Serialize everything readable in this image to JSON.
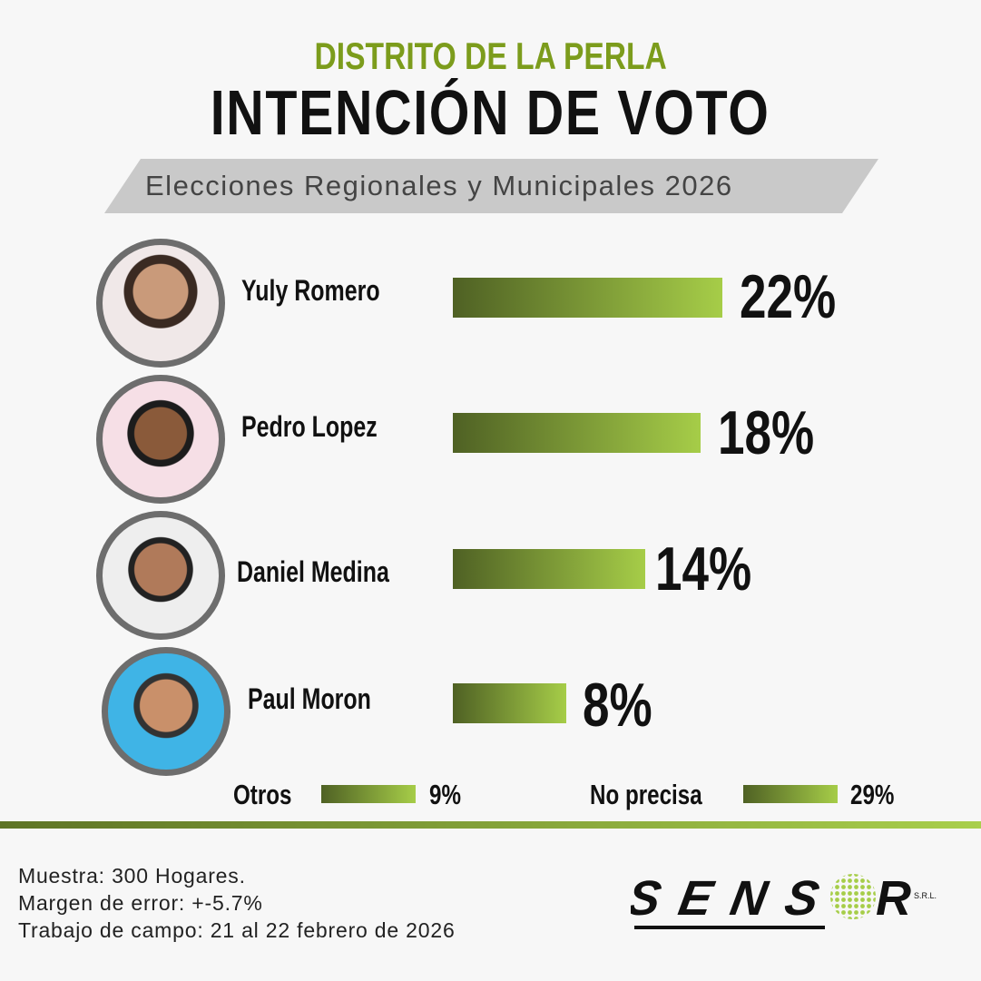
{
  "header": {
    "subtitle": "DISTRITO DE LA PERLA",
    "title": "INTENCIÓN DE VOTO",
    "banner": "Elecciones Regionales y Municipales 2026"
  },
  "chart_data": {
    "type": "bar",
    "title": "INTENCIÓN DE VOTO",
    "unit": "%",
    "categories": [
      "Yuly Romero",
      "Pedro Lopez",
      "Daniel Medina",
      "Paul Moron",
      "Otros",
      "No precisa"
    ],
    "values": [
      22,
      18,
      14,
      8,
      9,
      29
    ],
    "labels": [
      "22%",
      "18%",
      "14%",
      "8%",
      "9%",
      "29%"
    ],
    "colors": {
      "bar_start": "#4f6124",
      "bar_end": "#a6cd48",
      "accent": "#7c9c1c"
    }
  },
  "footer": {
    "sample": "Muestra: 300 Hogares.",
    "margin": "Margen de error: +-5.7%",
    "fieldwork": "Trabajo de campo: 21 al 22 febrero de 2026"
  },
  "logo": {
    "text": "SENSOR",
    "suffix": "S.R.L."
  }
}
